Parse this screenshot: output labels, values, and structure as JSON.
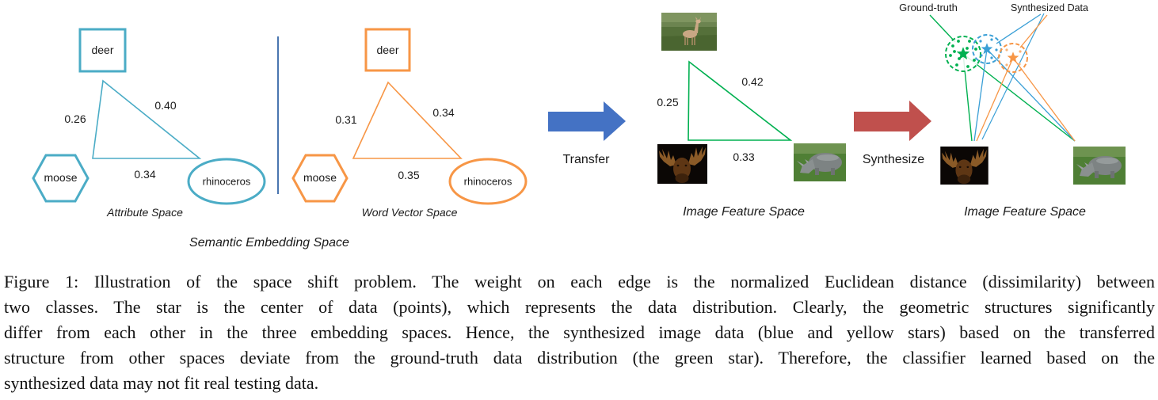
{
  "figure": {
    "semantic_space": {
      "title": "Semantic Embedding Space",
      "attribute_space": {
        "title": "Attribute Space",
        "nodes": {
          "top": "deer",
          "left": "moose",
          "right": "rhinoceros"
        },
        "edges": {
          "deer_moose": "0.26",
          "deer_rhinoceros": "0.40",
          "moose_rhinoceros": "0.34"
        }
      },
      "word_vector_space": {
        "title": "Word Vector Space",
        "nodes": {
          "top": "deer",
          "left": "moose",
          "right": "rhinoceros"
        },
        "edges": {
          "deer_moose": "0.31",
          "deer_rhinoceros": "0.34",
          "moose_rhinoceros": "0.35"
        }
      }
    },
    "transfer_arrow": {
      "label": "Transfer"
    },
    "image_feature_space": {
      "title": "Image Feature Space",
      "edges": {
        "deer_moose": "0.25",
        "deer_rhinoceros": "0.42",
        "moose_rhinoceros": "0.33"
      }
    },
    "synthesize_arrow": {
      "label": "Synthesize"
    },
    "synthesized_space": {
      "title": "Image Feature Space",
      "legend": {
        "ground_truth": "Ground-truth",
        "synthesized": "Synthesized Data"
      }
    }
  },
  "photos": {
    "deer": "deer-photo",
    "moose": "moose-photo",
    "rhinoceros": "rhinoceros-photo"
  },
  "colors": {
    "attribute_space": "#4BACC6",
    "word_vector_space": "#F79646",
    "image_feature_space": "#00B050",
    "transfer_arrow": "#4472C4",
    "synthesize_arrow": "#C0504D",
    "synthesized_blue": "#3A9FD6"
  },
  "caption": {
    "label": "Figure 1:",
    "lines": [
      "Illustration of the space shift problem. The weight on each edge is the normalized Euclidean distance (dissimilarity) between",
      "two classes. The star is the center of data (points), which represents the data distribution. Clearly, the geometric structures significantly",
      "differ from each other in the three embedding spaces. Hence, the synthesized image data (blue and yellow stars) based on the transferred",
      "structure from other spaces deviate from the ground-truth data distribution (the green star). Therefore, the classifier learned based on the",
      "synthesized data may not fit real testing data."
    ]
  }
}
